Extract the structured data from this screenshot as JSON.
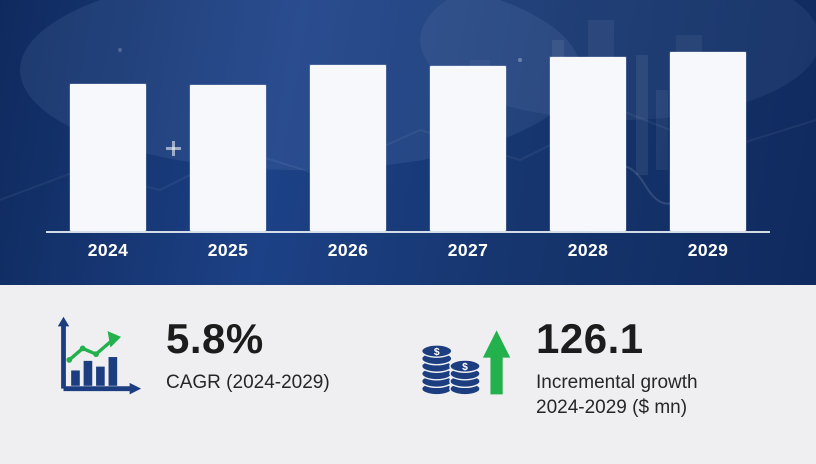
{
  "theme": {
    "bg_navy": "#16356e",
    "bg_navy_dark": "#0f2a5e",
    "bg_navy_light": "#1d4186",
    "bar_fill": "#f7f8fb",
    "baseline": "#e9eef6",
    "panel_bg": "#efeff1",
    "text_dark": "#1c1c1c",
    "green": "#23b14d",
    "icon_navy": "#1c3e80"
  },
  "chart_data": {
    "type": "bar",
    "title": "",
    "xlabel": "",
    "ylabel": "",
    "grid": false,
    "legend": false,
    "categories": [
      "2024",
      "2025",
      "2026",
      "2027",
      "2028",
      "2029"
    ],
    "values": [
      147,
      146,
      166,
      165,
      174,
      179
    ],
    "note": "Y-axis unlabeled in source; values are bar heights estimated in pixels (baseline = 0)."
  },
  "stats": {
    "cagr": {
      "value": "5.8%",
      "label": "CAGR (2024-2029)"
    },
    "incremental": {
      "value": "126.1",
      "label_line1": "Incremental growth",
      "label_line2": "2024-2029 ($ mn)"
    }
  },
  "icons": {
    "growth_chart": "bar-chart-trend-up-icon",
    "coins": "coin-stacks-up-arrow-icon"
  }
}
